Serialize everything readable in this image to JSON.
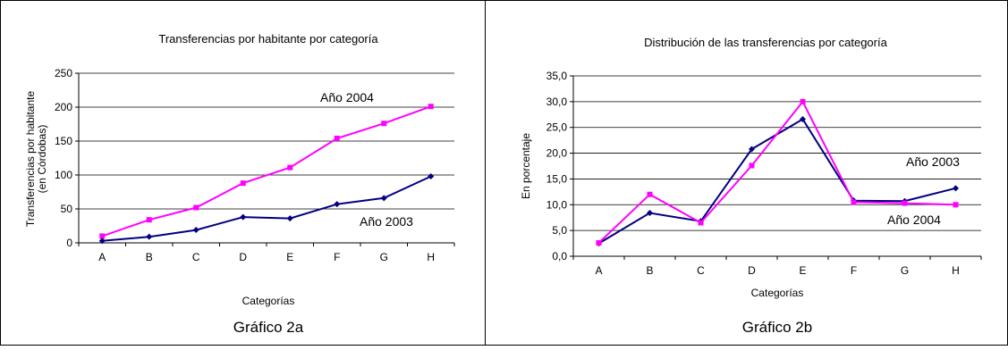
{
  "chart_data": [
    {
      "type": "line",
      "title": "Transferencias por habitante por categoría",
      "caption": "Gráfico 2a",
      "xlabel": "Categorías",
      "ylabel_line1": "Transferencias por habitante",
      "ylabel_line2": "(en Córdobas)",
      "categories": [
        "A",
        "B",
        "C",
        "D",
        "E",
        "F",
        "G",
        "H"
      ],
      "ylim": [
        0,
        250
      ],
      "yticks": [
        0,
        50,
        100,
        150,
        200,
        250
      ],
      "ytick_labels": [
        "0",
        "50",
        "100",
        "150",
        "200",
        "250"
      ],
      "grid": true,
      "series": [
        {
          "label": "Año 2004",
          "color": "#ff00ff",
          "marker": "square",
          "values": [
            10,
            34,
            52,
            88,
            111,
            154,
            176,
            201
          ]
        },
        {
          "label": "Año 2003",
          "color": "#000080",
          "marker": "diamond",
          "values": [
            3,
            9,
            19,
            38,
            36,
            57,
            66,
            98
          ]
        }
      ]
    },
    {
      "type": "line",
      "title": "Distribución de las transferencias por categoría",
      "caption": "Gráfico 2b",
      "xlabel": "Categorías",
      "ylabel": "En porcentaje",
      "categories": [
        "A",
        "B",
        "C",
        "D",
        "E",
        "F",
        "G",
        "H"
      ],
      "ylim": [
        0,
        35
      ],
      "yticks": [
        0,
        5,
        10,
        15,
        20,
        25,
        30,
        35
      ],
      "ytick_labels": [
        "0,0",
        "5,0",
        "10,0",
        "15,0",
        "20,0",
        "25,0",
        "30,0",
        "35,0"
      ],
      "grid": true,
      "series": [
        {
          "label": "Año 2003",
          "color": "#000080",
          "marker": "diamond",
          "values": [
            2.5,
            8.4,
            6.8,
            20.8,
            26.6,
            10.8,
            10.7,
            13.2
          ]
        },
        {
          "label": "Año 2004",
          "color": "#ff00ff",
          "marker": "square",
          "values": [
            2.6,
            12.0,
            6.5,
            17.6,
            30.0,
            10.5,
            10.3,
            10.0
          ]
        }
      ]
    }
  ]
}
